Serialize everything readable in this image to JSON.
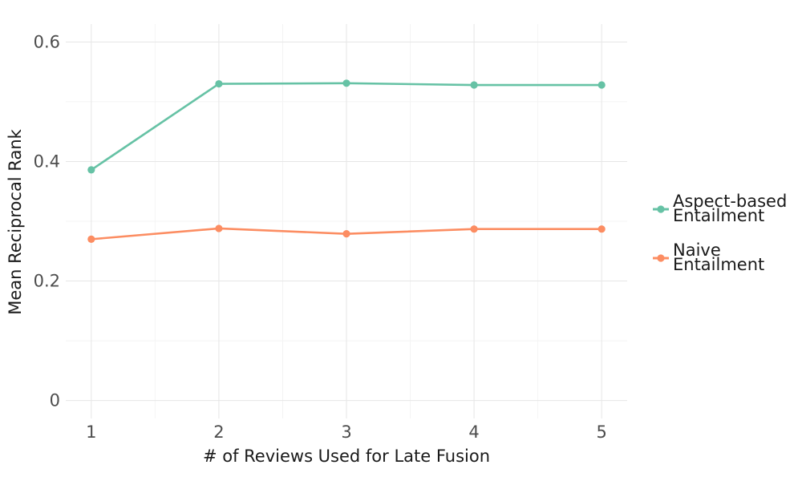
{
  "chart_data": {
    "type": "line",
    "title": "",
    "xlabel": "# of Reviews Used for Late Fusion",
    "ylabel": "Mean Reciprocal Rank",
    "x": [
      1,
      2,
      3,
      4,
      5
    ],
    "x_tick_labels": [
      "1",
      "2",
      "3",
      "4",
      "5"
    ],
    "y_ticks": [
      0,
      0.2,
      0.4,
      0.6
    ],
    "y_tick_labels": [
      "0",
      "0.2",
      "0.4",
      "0.6"
    ],
    "xlim": [
      0.8,
      5.2
    ],
    "ylim": [
      -0.03,
      0.63
    ],
    "grid": true,
    "legend_position": "right",
    "series": [
      {
        "name": "Aspect-based Entailment",
        "name_lines": [
          "Aspect-based",
          "Entailment"
        ],
        "color": "#66c2a5",
        "values": [
          0.386,
          0.53,
          0.531,
          0.528,
          0.528
        ]
      },
      {
        "name": "Naive Entailment",
        "name_lines": [
          "Naive",
          "Entailment"
        ],
        "color": "#fc8d62",
        "values": [
          0.27,
          0.288,
          0.279,
          0.287,
          0.287
        ]
      }
    ]
  }
}
